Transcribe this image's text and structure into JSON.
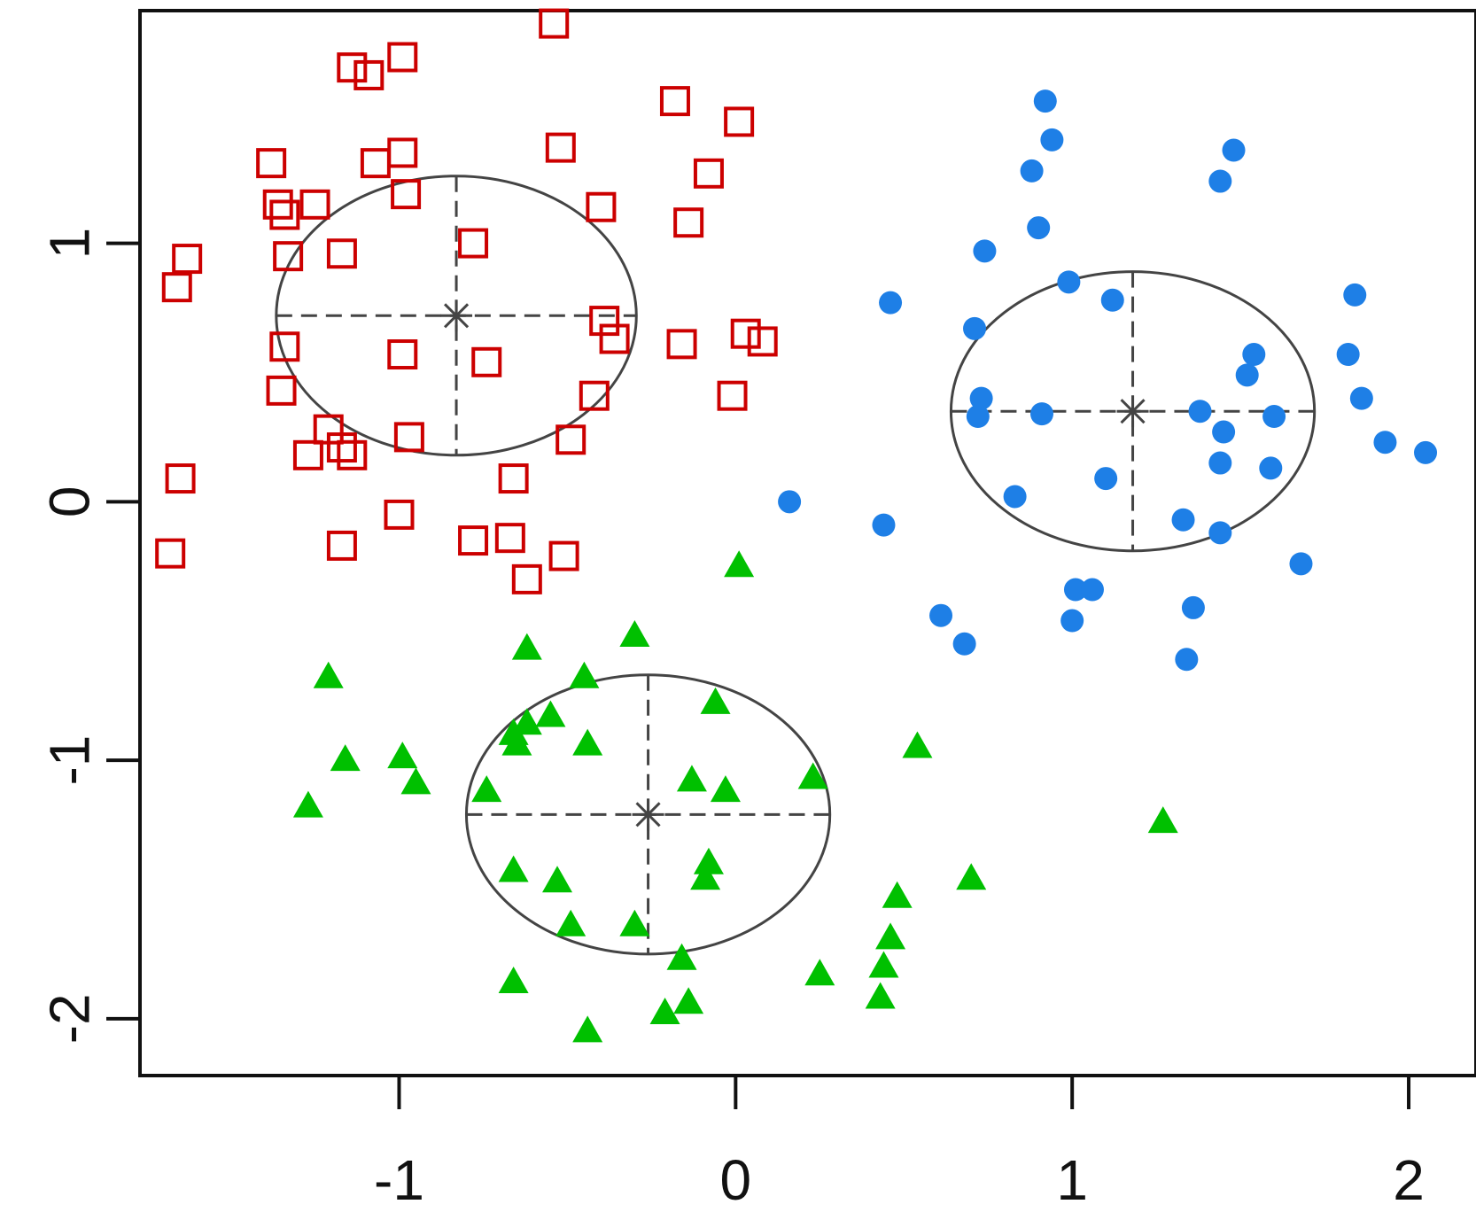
{
  "chart_data": {
    "type": "scatter",
    "title": "",
    "xlabel": "",
    "ylabel": "",
    "xlim": [
      -1.77,
      2.2
    ],
    "ylim": [
      -2.22,
      1.9
    ],
    "x_ticks": [
      -1,
      0,
      1,
      2
    ],
    "x_tick_labels": [
      "-1",
      "0",
      "1",
      "2"
    ],
    "y_ticks": [
      -2,
      -1,
      0,
      1
    ],
    "y_tick_labels": [
      "-2",
      "-1",
      "0",
      "1"
    ],
    "grid": false,
    "legend": "none",
    "series": [
      {
        "marker": "open-square",
        "color": "#cc0000",
        "center": [
          -0.83,
          0.72
        ],
        "ellipse_radii": [
          0.535,
          0.54
        ],
        "points": [
          [
            -0.99,
            1.72
          ],
          [
            -1.14,
            1.68
          ],
          [
            -0.54,
            1.85
          ],
          [
            -1.09,
            1.65
          ],
          [
            -0.18,
            1.55
          ],
          [
            0.01,
            1.47
          ],
          [
            -0.52,
            1.37
          ],
          [
            -0.99,
            1.35
          ],
          [
            -1.38,
            1.31
          ],
          [
            -1.07,
            1.31
          ],
          [
            -0.08,
            1.27
          ],
          [
            -0.98,
            1.19
          ],
          [
            -1.36,
            1.15
          ],
          [
            -1.25,
            1.15
          ],
          [
            -1.34,
            1.11
          ],
          [
            -0.4,
            1.14
          ],
          [
            -0.14,
            1.08
          ],
          [
            -0.78,
            1.0
          ],
          [
            -1.63,
            0.94
          ],
          [
            -1.66,
            0.83
          ],
          [
            -1.33,
            0.95
          ],
          [
            -1.17,
            0.96
          ],
          [
            -0.39,
            0.7
          ],
          [
            -0.36,
            0.63
          ],
          [
            -1.34,
            0.6
          ],
          [
            -0.99,
            0.57
          ],
          [
            -0.74,
            0.54
          ],
          [
            -0.16,
            0.61
          ],
          [
            0.03,
            0.65
          ],
          [
            0.08,
            0.62
          ],
          [
            -1.35,
            0.43
          ],
          [
            -0.42,
            0.41
          ],
          [
            -0.01,
            0.41
          ],
          [
            -1.21,
            0.28
          ],
          [
            -0.97,
            0.25
          ],
          [
            -0.49,
            0.24
          ],
          [
            -1.27,
            0.18
          ],
          [
            -1.17,
            0.21
          ],
          [
            -1.14,
            0.18
          ],
          [
            -1.65,
            0.09
          ],
          [
            -0.66,
            0.09
          ],
          [
            -1.0,
            -0.05
          ],
          [
            -1.68,
            -0.2
          ],
          [
            -1.17,
            -0.17
          ],
          [
            -0.78,
            -0.15
          ],
          [
            -0.67,
            -0.14
          ],
          [
            -0.51,
            -0.21
          ],
          [
            -0.62,
            -0.3
          ]
        ]
      },
      {
        "marker": "filled-circle",
        "color": "#1e7fe6",
        "center": [
          1.18,
          0.35
        ],
        "ellipse_radii": [
          0.54,
          0.54
        ],
        "points": [
          [
            0.92,
            1.55
          ],
          [
            0.94,
            1.4
          ],
          [
            1.48,
            1.36
          ],
          [
            0.88,
            1.28
          ],
          [
            1.44,
            1.24
          ],
          [
            0.9,
            1.06
          ],
          [
            0.74,
            0.97
          ],
          [
            0.99,
            0.85
          ],
          [
            1.12,
            0.78
          ],
          [
            1.84,
            0.8
          ],
          [
            0.46,
            0.77
          ],
          [
            0.71,
            0.67
          ],
          [
            1.54,
            0.57
          ],
          [
            1.82,
            0.57
          ],
          [
            1.52,
            0.49
          ],
          [
            1.86,
            0.4
          ],
          [
            0.73,
            0.4
          ],
          [
            0.72,
            0.33
          ],
          [
            0.91,
            0.34
          ],
          [
            1.38,
            0.35
          ],
          [
            1.6,
            0.33
          ],
          [
            1.45,
            0.27
          ],
          [
            1.93,
            0.23
          ],
          [
            2.05,
            0.19
          ],
          [
            1.44,
            0.15
          ],
          [
            1.59,
            0.13
          ],
          [
            1.1,
            0.09
          ],
          [
            0.83,
            0.02
          ],
          [
            0.16,
            0.0
          ],
          [
            0.44,
            -0.09
          ],
          [
            1.33,
            -0.07
          ],
          [
            1.44,
            -0.12
          ],
          [
            1.68,
            -0.24
          ],
          [
            1.01,
            -0.34
          ],
          [
            1.06,
            -0.34
          ],
          [
            1.36,
            -0.41
          ],
          [
            0.61,
            -0.44
          ],
          [
            0.68,
            -0.55
          ],
          [
            1.0,
            -0.46
          ],
          [
            1.34,
            -0.61
          ]
        ]
      },
      {
        "marker": "filled-triangle",
        "color": "#00c000",
        "center": [
          -0.26,
          -1.21
        ],
        "ellipse_radii": [
          0.54,
          0.54
        ],
        "points": [
          [
            0.01,
            -0.25
          ],
          [
            -0.62,
            -0.57
          ],
          [
            -0.3,
            -0.52
          ],
          [
            -1.21,
            -0.68
          ],
          [
            -0.45,
            -0.68
          ],
          [
            -0.06,
            -0.78
          ],
          [
            -0.55,
            -0.83
          ],
          [
            -0.62,
            -0.86
          ],
          [
            -0.66,
            -0.9
          ],
          [
            -0.65,
            -0.94
          ],
          [
            -0.44,
            -0.94
          ],
          [
            0.54,
            -0.95
          ],
          [
            -1.16,
            -1.0
          ],
          [
            -0.99,
            -0.99
          ],
          [
            -0.95,
            -1.09
          ],
          [
            -0.74,
            -1.12
          ],
          [
            -0.13,
            -1.08
          ],
          [
            -0.03,
            -1.12
          ],
          [
            0.23,
            -1.07
          ],
          [
            -1.27,
            -1.18
          ],
          [
            1.27,
            -1.24
          ],
          [
            -0.66,
            -1.43
          ],
          [
            -0.53,
            -1.47
          ],
          [
            -0.08,
            -1.4
          ],
          [
            -0.09,
            -1.46
          ],
          [
            0.48,
            -1.53
          ],
          [
            0.7,
            -1.46
          ],
          [
            -0.49,
            -1.64
          ],
          [
            -0.3,
            -1.64
          ],
          [
            0.46,
            -1.69
          ],
          [
            -0.16,
            -1.77
          ],
          [
            0.44,
            -1.8
          ],
          [
            -0.66,
            -1.86
          ],
          [
            0.25,
            -1.83
          ],
          [
            -0.14,
            -1.94
          ],
          [
            -0.21,
            -1.98
          ],
          [
            0.43,
            -1.92
          ],
          [
            -0.44,
            -2.05
          ]
        ]
      }
    ]
  }
}
